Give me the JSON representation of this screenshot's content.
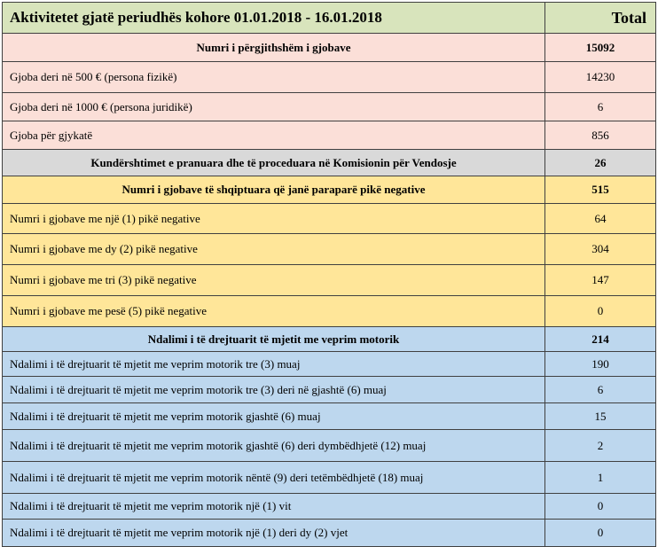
{
  "header": {
    "title": "Aktivitetet gjatë periudhës kohore 01.01.2018 - 16.01.2018",
    "total_label": "Total"
  },
  "rows": [
    {
      "label": "Numri i përgjithshëm i gjobave",
      "value": "15092"
    },
    {
      "label": "Gjoba deri në 500 € (persona fizikë)",
      "value": "14230"
    },
    {
      "label": "Gjoba deri në 1000 € (persona juridikë)",
      "value": "6"
    },
    {
      "label": "Gjoba për gjykatë",
      "value": "856"
    },
    {
      "label": "Kundërshtimet e pranuara dhe të proceduara në Komisionin për Vendosje",
      "value": "26"
    },
    {
      "label": "Numri i gjobave të shqiptuara që janë paraparë pikë negative",
      "value": "515"
    },
    {
      "label": "Numri i gjobave me një (1) pikë negative",
      "value": "64"
    },
    {
      "label": "Numri i gjobave me dy (2) pikë negative",
      "value": "304"
    },
    {
      "label": "Numri i gjobave me tri (3) pikë negative",
      "value": "147"
    },
    {
      "label": "Numri i gjobave me pesë (5) pikë negative",
      "value": "0"
    },
    {
      "label": "Ndalimi i të drejtuarit të mjetit me veprim motorik",
      "value": "214"
    },
    {
      "label": "Ndalimi i të drejtuarit të mjetit me veprim motorik tre (3) muaj",
      "value": "190"
    },
    {
      "label": "Ndalimi i të drejtuarit të mjetit me veprim motorik tre (3) deri në gjashtë (6) muaj",
      "value": "6"
    },
    {
      "label": "Ndalimi i të drejtuarit të mjetit me veprim motorik gjashtë (6) muaj",
      "value": "15"
    },
    {
      "label": "Ndalimi i të drejtuarit të mjetit me veprim motorik gjashtë (6) deri dymbëdhjetë (12) muaj",
      "value": "2"
    },
    {
      "label": "Ndalimi i të drejtuarit të mjetit me veprim motorik nëntë (9) deri tetëmbëdhjetë (18) muaj",
      "value": "1"
    },
    {
      "label": "Ndalimi i të drejtuarit të mjetit me veprim motorik një (1) vit",
      "value": "0"
    },
    {
      "label": "Ndalimi i të drejtuarit të mjetit me veprim motorik një (1) deri dy (2) vjet",
      "value": "0"
    }
  ],
  "colors": {
    "header": "#d8e4bc",
    "fines": "#fbdfd8",
    "objections": "#d9d9d9",
    "points": "#ffe699",
    "suspensions": "#bdd7ee"
  }
}
